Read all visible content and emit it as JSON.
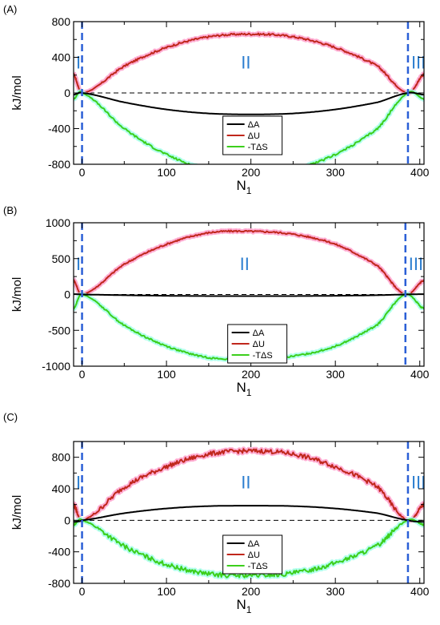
{
  "colors": {
    "dA": "#000000",
    "dU": "#c0271c",
    "TdS": "#3ccf1c",
    "dU_shadow": "#ff99c8",
    "TdS_shadow": "#9fffe8",
    "vline": "#2b5fd6",
    "region": "#2e7fd0"
  },
  "chart_data": [
    {
      "type": "line",
      "panel_label": "(A)",
      "xlabel": "N",
      "xlabel_sub": "1",
      "ylabel": "kJ/mol",
      "xlim": [
        -10,
        405
      ],
      "ylim": [
        -800,
        800
      ],
      "x_ticks": [
        0,
        100,
        200,
        300,
        400
      ],
      "y_ticks": [
        -800,
        -400,
        0,
        400,
        800
      ],
      "y_tick_labels": [
        "-800",
        "-400",
        "0",
        "400",
        "800"
      ],
      "grid": false,
      "legend_position": "bottom-center",
      "boundaries": [
        0,
        386
      ],
      "regions": [
        "I",
        "II",
        "III"
      ],
      "series": [
        {
          "name": "ΔA",
          "key": "dA",
          "x": [
            -10,
            0,
            50,
            100,
            150,
            200,
            250,
            300,
            350,
            386,
            405
          ],
          "y": [
            -20,
            0,
            -105,
            -185,
            -230,
            -240,
            -230,
            -185,
            -105,
            0,
            -20
          ]
        },
        {
          "name": "ΔU",
          "key": "dU",
          "x": [
            -10,
            0,
            50,
            100,
            150,
            200,
            250,
            300,
            350,
            386,
            405
          ],
          "y": [
            210,
            0,
            300,
            510,
            630,
            660,
            630,
            510,
            300,
            0,
            210
          ]
        },
        {
          "name": "-TΔS",
          "key": "TdS",
          "x": [
            -10,
            0,
            50,
            100,
            150,
            200,
            250,
            300,
            350,
            386,
            405
          ],
          "y": [
            -70,
            0,
            -400,
            -690,
            -860,
            -900,
            -860,
            -690,
            -400,
            0,
            -70
          ]
        }
      ]
    },
    {
      "type": "line",
      "panel_label": "(B)",
      "xlabel": "N",
      "xlabel_sub": "1",
      "ylabel": "kJ/mol",
      "xlim": [
        -10,
        405
      ],
      "ylim": [
        -1000,
        1000
      ],
      "x_ticks": [
        0,
        100,
        200,
        300,
        400
      ],
      "y_ticks": [
        -1000,
        -500,
        0,
        500,
        1000
      ],
      "y_tick_labels": [
        "-1000",
        "-500",
        "0",
        "500",
        "1000"
      ],
      "grid": false,
      "legend_position": "bottom-center",
      "boundaries": [
        0,
        383
      ],
      "regions": [
        "I",
        "II",
        "III"
      ],
      "series": [
        {
          "name": "ΔA",
          "key": "dA",
          "x": [
            -10,
            0,
            50,
            100,
            150,
            200,
            250,
            300,
            350,
            383,
            405
          ],
          "y": [
            5,
            0,
            -10,
            -18,
            -22,
            -22,
            -22,
            -18,
            -10,
            0,
            5
          ]
        },
        {
          "name": "ΔU",
          "key": "dU",
          "x": [
            -10,
            0,
            50,
            100,
            150,
            200,
            250,
            300,
            350,
            383,
            405
          ],
          "y": [
            200,
            0,
            420,
            700,
            860,
            880,
            840,
            700,
            400,
            0,
            200
          ]
        },
        {
          "name": "-TΔS",
          "key": "TdS",
          "x": [
            -10,
            0,
            50,
            100,
            150,
            200,
            250,
            300,
            350,
            383,
            405
          ],
          "y": [
            -200,
            0,
            -430,
            -720,
            -880,
            -900,
            -860,
            -720,
            -420,
            0,
            -200
          ]
        }
      ]
    },
    {
      "type": "line",
      "panel_label": "(C)",
      "xlabel": "N",
      "xlabel_sub": "1",
      "ylabel": "kJ/mol",
      "xlim": [
        -10,
        405
      ],
      "ylim": [
        -800,
        1000
      ],
      "x_ticks": [
        0,
        100,
        200,
        300,
        400
      ],
      "y_ticks": [
        -800,
        -400,
        0,
        400,
        800
      ],
      "y_tick_labels": [
        "-800",
        "-400",
        "0",
        "400",
        "800"
      ],
      "grid": false,
      "legend_position": "bottom-center",
      "boundaries": [
        0,
        386
      ],
      "regions": [
        "I",
        "II",
        "III"
      ],
      "series": [
        {
          "name": "ΔA",
          "key": "dA",
          "x": [
            -10,
            0,
            50,
            100,
            150,
            200,
            250,
            300,
            350,
            386,
            405
          ],
          "y": [
            -20,
            0,
            90,
            150,
            180,
            185,
            180,
            150,
            90,
            0,
            -20
          ]
        },
        {
          "name": "ΔU",
          "key": "dU",
          "x": [
            -10,
            0,
            50,
            100,
            150,
            200,
            250,
            300,
            350,
            386,
            405
          ],
          "y": [
            200,
            0,
            420,
            680,
            840,
            880,
            840,
            680,
            420,
            0,
            200
          ]
        },
        {
          "name": "-TΔS",
          "key": "TdS",
          "x": [
            -10,
            0,
            50,
            100,
            150,
            200,
            250,
            300,
            350,
            386,
            405
          ],
          "y": [
            -60,
            0,
            -330,
            -560,
            -680,
            -700,
            -670,
            -540,
            -320,
            0,
            -60
          ]
        }
      ]
    }
  ]
}
